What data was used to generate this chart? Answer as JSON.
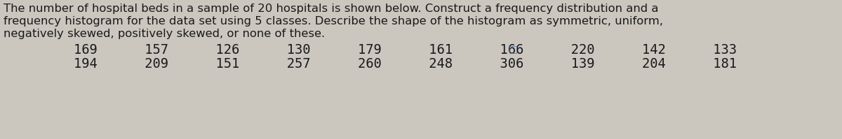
{
  "line1": "The number of hospital beds in a sample of 20 hospitals is shown below. Construct a frequency distribution and a",
  "line2": "frequency histogram for the data set using 5 classes. Describe the shape of the histogram as symmetric, uniform,",
  "line3": "negatively skewed, positively skewed, or none of these.",
  "row1": "169      157      126      130      179      161      166      220      142      133",
  "row2": "194      209      151      257      260      248      306      139      204      181",
  "icon": "□",
  "bg_color": "#cbc7bf",
  "text_color": "#1a1a1a",
  "font_size_para": 11.8,
  "font_size_data": 13.5,
  "icon_color": "#5577aa"
}
